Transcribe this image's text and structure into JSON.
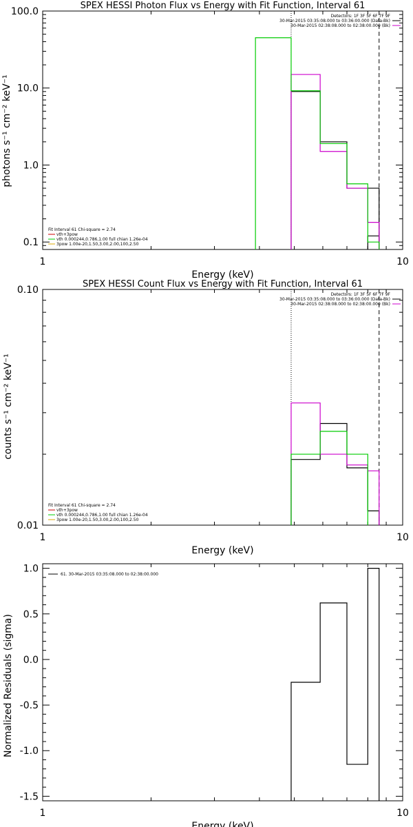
{
  "chart_data": [
    {
      "type": "line",
      "title": "SPEX HESSI Photon Flux vs Energy with Fit Function, Interval 61",
      "xlabel": "Energy (keV)",
      "ylabel": "photons s⁻¹ cm⁻² keV⁻¹",
      "xscale": "log",
      "yscale": "log",
      "xlim": [
        1,
        10
      ],
      "ylim": [
        0.08,
        100
      ],
      "xticks": [
        "1",
        "10"
      ],
      "yticks": [
        "0.1",
        "1.0",
        "10.0",
        "100.0"
      ],
      "vlines": [
        {
          "x": 4.9,
          "style": "dotted"
        },
        {
          "x": 8.6,
          "style": "dashed"
        }
      ],
      "info_lines": [
        {
          "text": "Detectors: 1F 3F 5F 6F 7F 9F",
          "color": ""
        },
        {
          "text": "30-Mar-2015 03:35:08.000 to 03:36:00.000 (Data-Bk)",
          "color": "#000000"
        },
        {
          "text": "30-Mar-2015 02:38:08.000 to 02:38:00.000 (Bk)",
          "color": "#cc00cc"
        }
      ],
      "fit_lines": [
        {
          "text": "Fit Interval 61   Chi-square = 2.74",
          "color": ""
        },
        {
          "text": "vth+3pow",
          "color": "#cc0000"
        },
        {
          "text": "vth 0.000244,0.786,1.00   full chian 1.26e-04",
          "color": "#00cc00"
        },
        {
          "text": "3pow 1.00e-20,1.50,3.00,2.00,100,2.50",
          "color": "#ddaa00"
        }
      ],
      "series": [
        {
          "color": "#000000",
          "edges": [
            4.9,
            5.9,
            7.0,
            8.6
          ],
          "values": [
            9.0,
            2.0,
            0.5
          ]
        },
        {
          "color": "#000000",
          "edges": [
            8.0,
            8.6
          ],
          "values": [
            0.12
          ]
        },
        {
          "color": "#cc00cc",
          "edges": [
            4.9,
            5.9,
            7.0,
            8.0,
            8.6
          ],
          "values": [
            15.0,
            1.5,
            0.5,
            0.18
          ]
        },
        {
          "color": "#00cc00",
          "edges": [
            3.9,
            4.9,
            5.9,
            7.0,
            8.0,
            8.6
          ],
          "values": [
            45.0,
            9.2,
            1.9,
            0.57,
            0.1
          ]
        }
      ]
    },
    {
      "type": "line",
      "title": "SPEX HESSI Count Flux vs Energy with Fit Function, Interval 61",
      "xlabel": "Energy (keV)",
      "ylabel": "counts s⁻¹ cm⁻² keV⁻¹",
      "xscale": "log",
      "yscale": "log",
      "xlim": [
        1,
        10
      ],
      "ylim": [
        0.01,
        0.1
      ],
      "xticks": [
        "1",
        "10"
      ],
      "yticks": [
        "0.01",
        "0.10"
      ],
      "vlines": [
        {
          "x": 4.9,
          "style": "dotted"
        },
        {
          "x": 8.6,
          "style": "dashed"
        }
      ],
      "info_lines": [
        {
          "text": "Detectors: 1F 3F 5F 6F 7F 9F",
          "color": ""
        },
        {
          "text": "30-Mar-2015 03:35:08.000 to 03:36:00.000 (Data-Bk)",
          "color": "#000000"
        },
        {
          "text": "30-Mar-2015 02:38:08.000 to 02:38:00.000 (Bk)",
          "color": "#cc00cc"
        }
      ],
      "fit_lines": [
        {
          "text": "Fit Interval 61   Chi-square = 2.74",
          "color": ""
        },
        {
          "text": "vth+3pow",
          "color": "#cc0000"
        },
        {
          "text": "vth 0.000244,0.786,1.00   full chian 1.26e-04",
          "color": "#00cc00"
        },
        {
          "text": "3pow 1.00e-20,1.50,3.00,2.00,100,2.50",
          "color": "#ddaa00"
        }
      ],
      "series": [
        {
          "color": "#000000",
          "edges": [
            4.9,
            5.9,
            7.0,
            8.0,
            8.6
          ],
          "values": [
            0.019,
            0.027,
            0.0175,
            0.0115
          ]
        },
        {
          "color": "#cc00cc",
          "edges": [
            4.9,
            5.9,
            7.0,
            8.0,
            8.6
          ],
          "values": [
            0.033,
            0.02,
            0.018,
            0.017
          ]
        },
        {
          "color": "#00cc00",
          "edges": [
            4.9,
            5.9,
            7.0,
            8.0
          ],
          "values": [
            0.02,
            0.025,
            0.02
          ]
        }
      ]
    },
    {
      "type": "line",
      "title": "",
      "xlabel": "Energy (keV)",
      "ylabel": "Normalized Residuals (sigma)",
      "xscale": "log",
      "yscale": "linear",
      "xlim": [
        1,
        10
      ],
      "ylim": [
        -1.55,
        1.05
      ],
      "xticks": [
        "1",
        "10"
      ],
      "yticks": [
        "-1.5",
        "-1.0",
        "-0.5",
        "0.0",
        "0.5",
        "1.0"
      ],
      "vlines": [],
      "info_lines": [],
      "fit_lines": [],
      "legend": "61. 30-Mar-2015 03:35:08.000 to 02:38:00.000",
      "series": [
        {
          "color": "#000000",
          "edges": [
            4.9,
            5.9,
            7.0,
            8.0,
            8.6
          ],
          "values": [
            -0.25,
            0.62,
            -1.15,
            1.0
          ]
        }
      ]
    }
  ]
}
